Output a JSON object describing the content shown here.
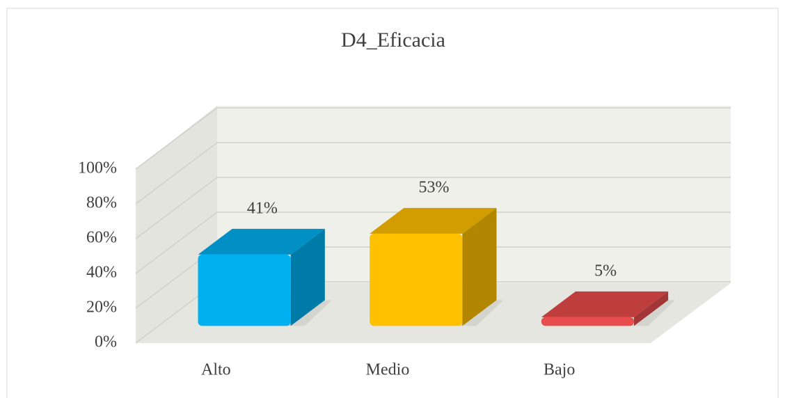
{
  "chart_data": {
    "type": "bar3d",
    "title": "D4_Eficacia",
    "categories": [
      "Alto",
      "Medio",
      "Bajo"
    ],
    "values": [
      41,
      53,
      5
    ],
    "value_labels": [
      "41%",
      "53%",
      "5%"
    ],
    "colors": [
      "#00b0f0",
      "#ffc000",
      "#e84c4c"
    ],
    "ylim": [
      0,
      100
    ],
    "yticks": [
      {
        "value": 0,
        "label": "0%"
      },
      {
        "value": 20,
        "label": "20%"
      },
      {
        "value": 40,
        "label": "40%"
      },
      {
        "value": 60,
        "label": "60%"
      },
      {
        "value": 80,
        "label": "80%"
      },
      {
        "value": 100,
        "label": "100%"
      }
    ],
    "grid": true
  }
}
